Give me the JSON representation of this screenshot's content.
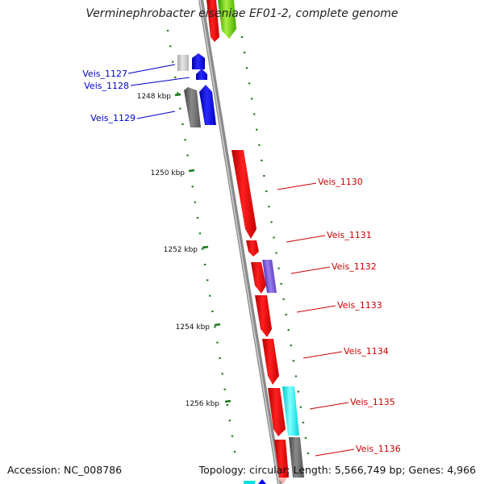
{
  "title": "Verminephrobacter eiseniae EF01-2, complete genome",
  "footer": {
    "accession": "Accession: NC_008786",
    "summary": "Topology: circular; Length: 5,566,749 bp; Genes: 4,966"
  },
  "colors": {
    "backbone": "#8a8a8a",
    "ticks": "#1a7a1a",
    "red": "#ff0000",
    "blue": "#0000ff",
    "gray": "#6e6e6e",
    "lightgray": "#c8c8c8",
    "cyan": "#00ffff",
    "purple": "#7d55d6",
    "green": "#66cc00",
    "label_blue": "#0000cc",
    "label_red": "#cc0000"
  },
  "kbp_labels": [
    "1248 kbp",
    "1250 kbp",
    "1252 kbp",
    "1254 kbp",
    "1256 kbp"
  ],
  "genes": [
    {
      "label": "Veis_1127",
      "side": "left"
    },
    {
      "label": "Veis_1128",
      "side": "left"
    },
    {
      "label": "Veis_1129",
      "side": "left"
    },
    {
      "label": "Veis_1130",
      "side": "right"
    },
    {
      "label": "Veis_1131",
      "side": "right"
    },
    {
      "label": "Veis_1132",
      "side": "right"
    },
    {
      "label": "Veis_1133",
      "side": "right"
    },
    {
      "label": "Veis_1134",
      "side": "right"
    },
    {
      "label": "Veis_1135",
      "side": "right"
    },
    {
      "label": "Veis_1136",
      "side": "right"
    }
  ]
}
